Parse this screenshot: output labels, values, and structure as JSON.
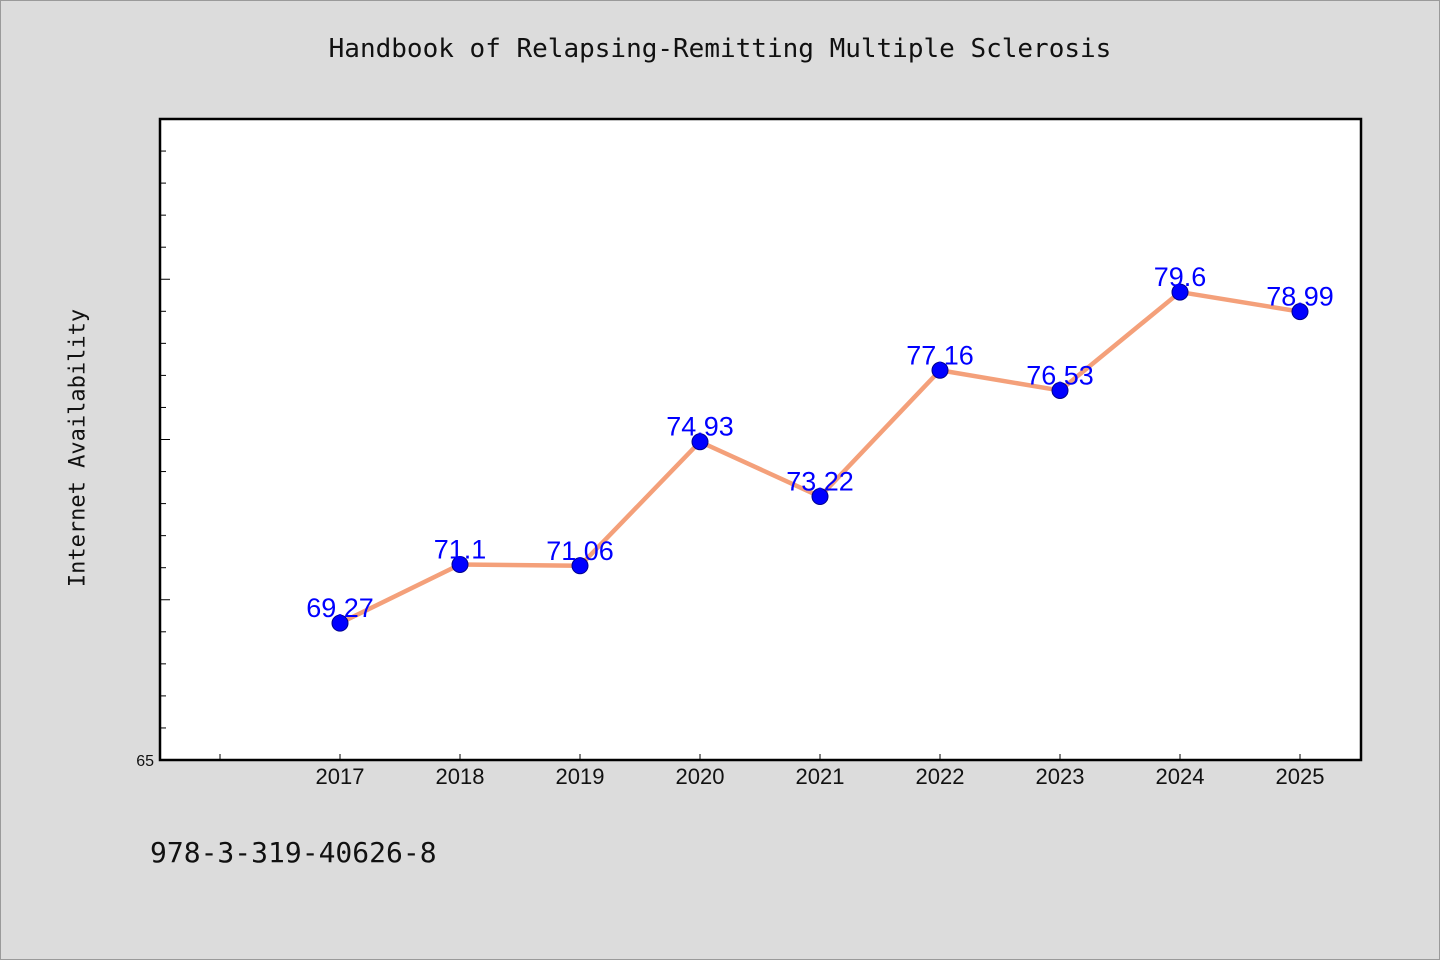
{
  "page": {
    "title": "Handbook of Relapsing-Remitting Multiple Sclerosis",
    "footer_code": "978-3-319-40626-8"
  },
  "chart_data": {
    "type": "line",
    "title": "Handbook of Relapsing-Remitting Multiple Sclerosis",
    "xlabel": "",
    "ylabel": "Internet Availability",
    "categories": [
      "2017",
      "2018",
      "2019",
      "2020",
      "2021",
      "2022",
      "2023",
      "2024",
      "2025"
    ],
    "series": [
      {
        "values": [
          69.27,
          71.1,
          71.06,
          74.93,
          73.22,
          77.16,
          76.53,
          79.6,
          78.99
        ],
        "line_color": "#f4a07a",
        "marker_color": "#0000ff",
        "label_color": "#0000ff"
      }
    ],
    "ylim": [
      65,
      85
    ],
    "y_tick_labels": [
      "65"
    ],
    "grid": false,
    "legend": "none"
  }
}
